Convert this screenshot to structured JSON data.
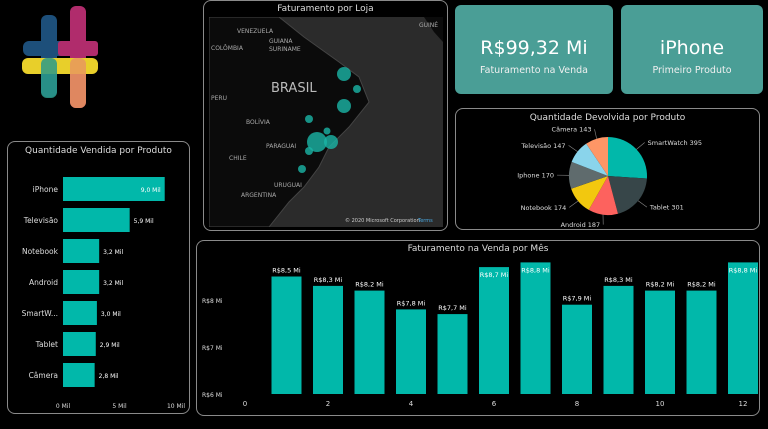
{
  "kpis": [
    {
      "value": "R$99,32 Mi",
      "label": "Faturamento na Venda"
    },
    {
      "value": "iPhone",
      "label": "Primeiro Produto"
    }
  ],
  "map": {
    "title": "Faturamento por Loja",
    "labels": [
      "VENEZUELA",
      "GUIANA",
      "COLÔMBIA",
      "SURINAME",
      "GUINÉ",
      "BRASIL",
      "PERU",
      "BOLÍVIA",
      "PARAGUAI",
      "CHILE",
      "URUGUAI",
      "ARGENTINA"
    ],
    "attribution": "© 2020 Microsoft Corporation",
    "brand": "Terms",
    "bubble_color": "#1ab5a6"
  },
  "chart_data": [
    {
      "type": "bar",
      "orientation": "horizontal",
      "title": "Quantidade Vendida por Produto",
      "categories": [
        "iPhone",
        "Televisão",
        "Notebook",
        "Android",
        "SmartW...",
        "Tablet",
        "Câmera"
      ],
      "values": [
        9.0,
        5.9,
        3.2,
        3.2,
        3.0,
        2.9,
        2.8
      ],
      "data_labels": [
        "9,0 Mil",
        "5,9 Mil",
        "3,2 Mil",
        "3,2 Mil",
        "3,0 Mil",
        "2,9 Mil",
        "2,8 Mil"
      ],
      "xlim": [
        0,
        10
      ],
      "xticks": [
        "0 Mil",
        "5 Mil",
        "10 Mil"
      ],
      "color": "#01b8aa"
    },
    {
      "type": "pie",
      "title": "Quantidade Devolvida por Produto",
      "slices": [
        {
          "label": "SmartWatch",
          "value": 395,
          "color": "#01b8aa"
        },
        {
          "label": "Tablet",
          "value": 301,
          "color": "#374649"
        },
        {
          "label": "Android",
          "value": 187,
          "color": "#fd625e"
        },
        {
          "label": "Notebook",
          "value": 174,
          "color": "#f2c80f"
        },
        {
          "label": "Iphone",
          "value": 170,
          "color": "#5f6b6d"
        },
        {
          "label": "Televisão",
          "value": 147,
          "color": "#8ad4eb"
        },
        {
          "label": "Câmera",
          "value": 143,
          "color": "#fe9666"
        }
      ]
    },
    {
      "type": "bar",
      "title": "Faturamento na Venda por Mês",
      "x": [
        1,
        2,
        3,
        4,
        5,
        6,
        7,
        8,
        9,
        10,
        11,
        12
      ],
      "values": [
        8.5,
        8.3,
        8.2,
        7.8,
        7.7,
        8.7,
        8.8,
        7.9,
        8.3,
        8.2,
        8.2,
        8.8
      ],
      "data_labels": [
        "R$8,5 Mi",
        "R$8,3 Mi",
        "R$8,2 Mi",
        "R$7,8 Mi",
        "R$7,7 Mi",
        "R$8,7 Mi",
        "R$8,8 Mi",
        "R$7,9 Mi",
        "R$8,3 Mi",
        "R$8,2 Mi",
        "R$8,2 Mi",
        "R$8,8 Mi"
      ],
      "ylim": [
        6,
        8.9
      ],
      "yticks": [
        "R$6 Mi",
        "R$7 Mi",
        "R$8 Mi"
      ],
      "xticks": [
        "0",
        "2",
        "4",
        "6",
        "8",
        "10",
        "12"
      ],
      "xlim": [
        0,
        12.3
      ],
      "color": "#01b8aa"
    }
  ]
}
